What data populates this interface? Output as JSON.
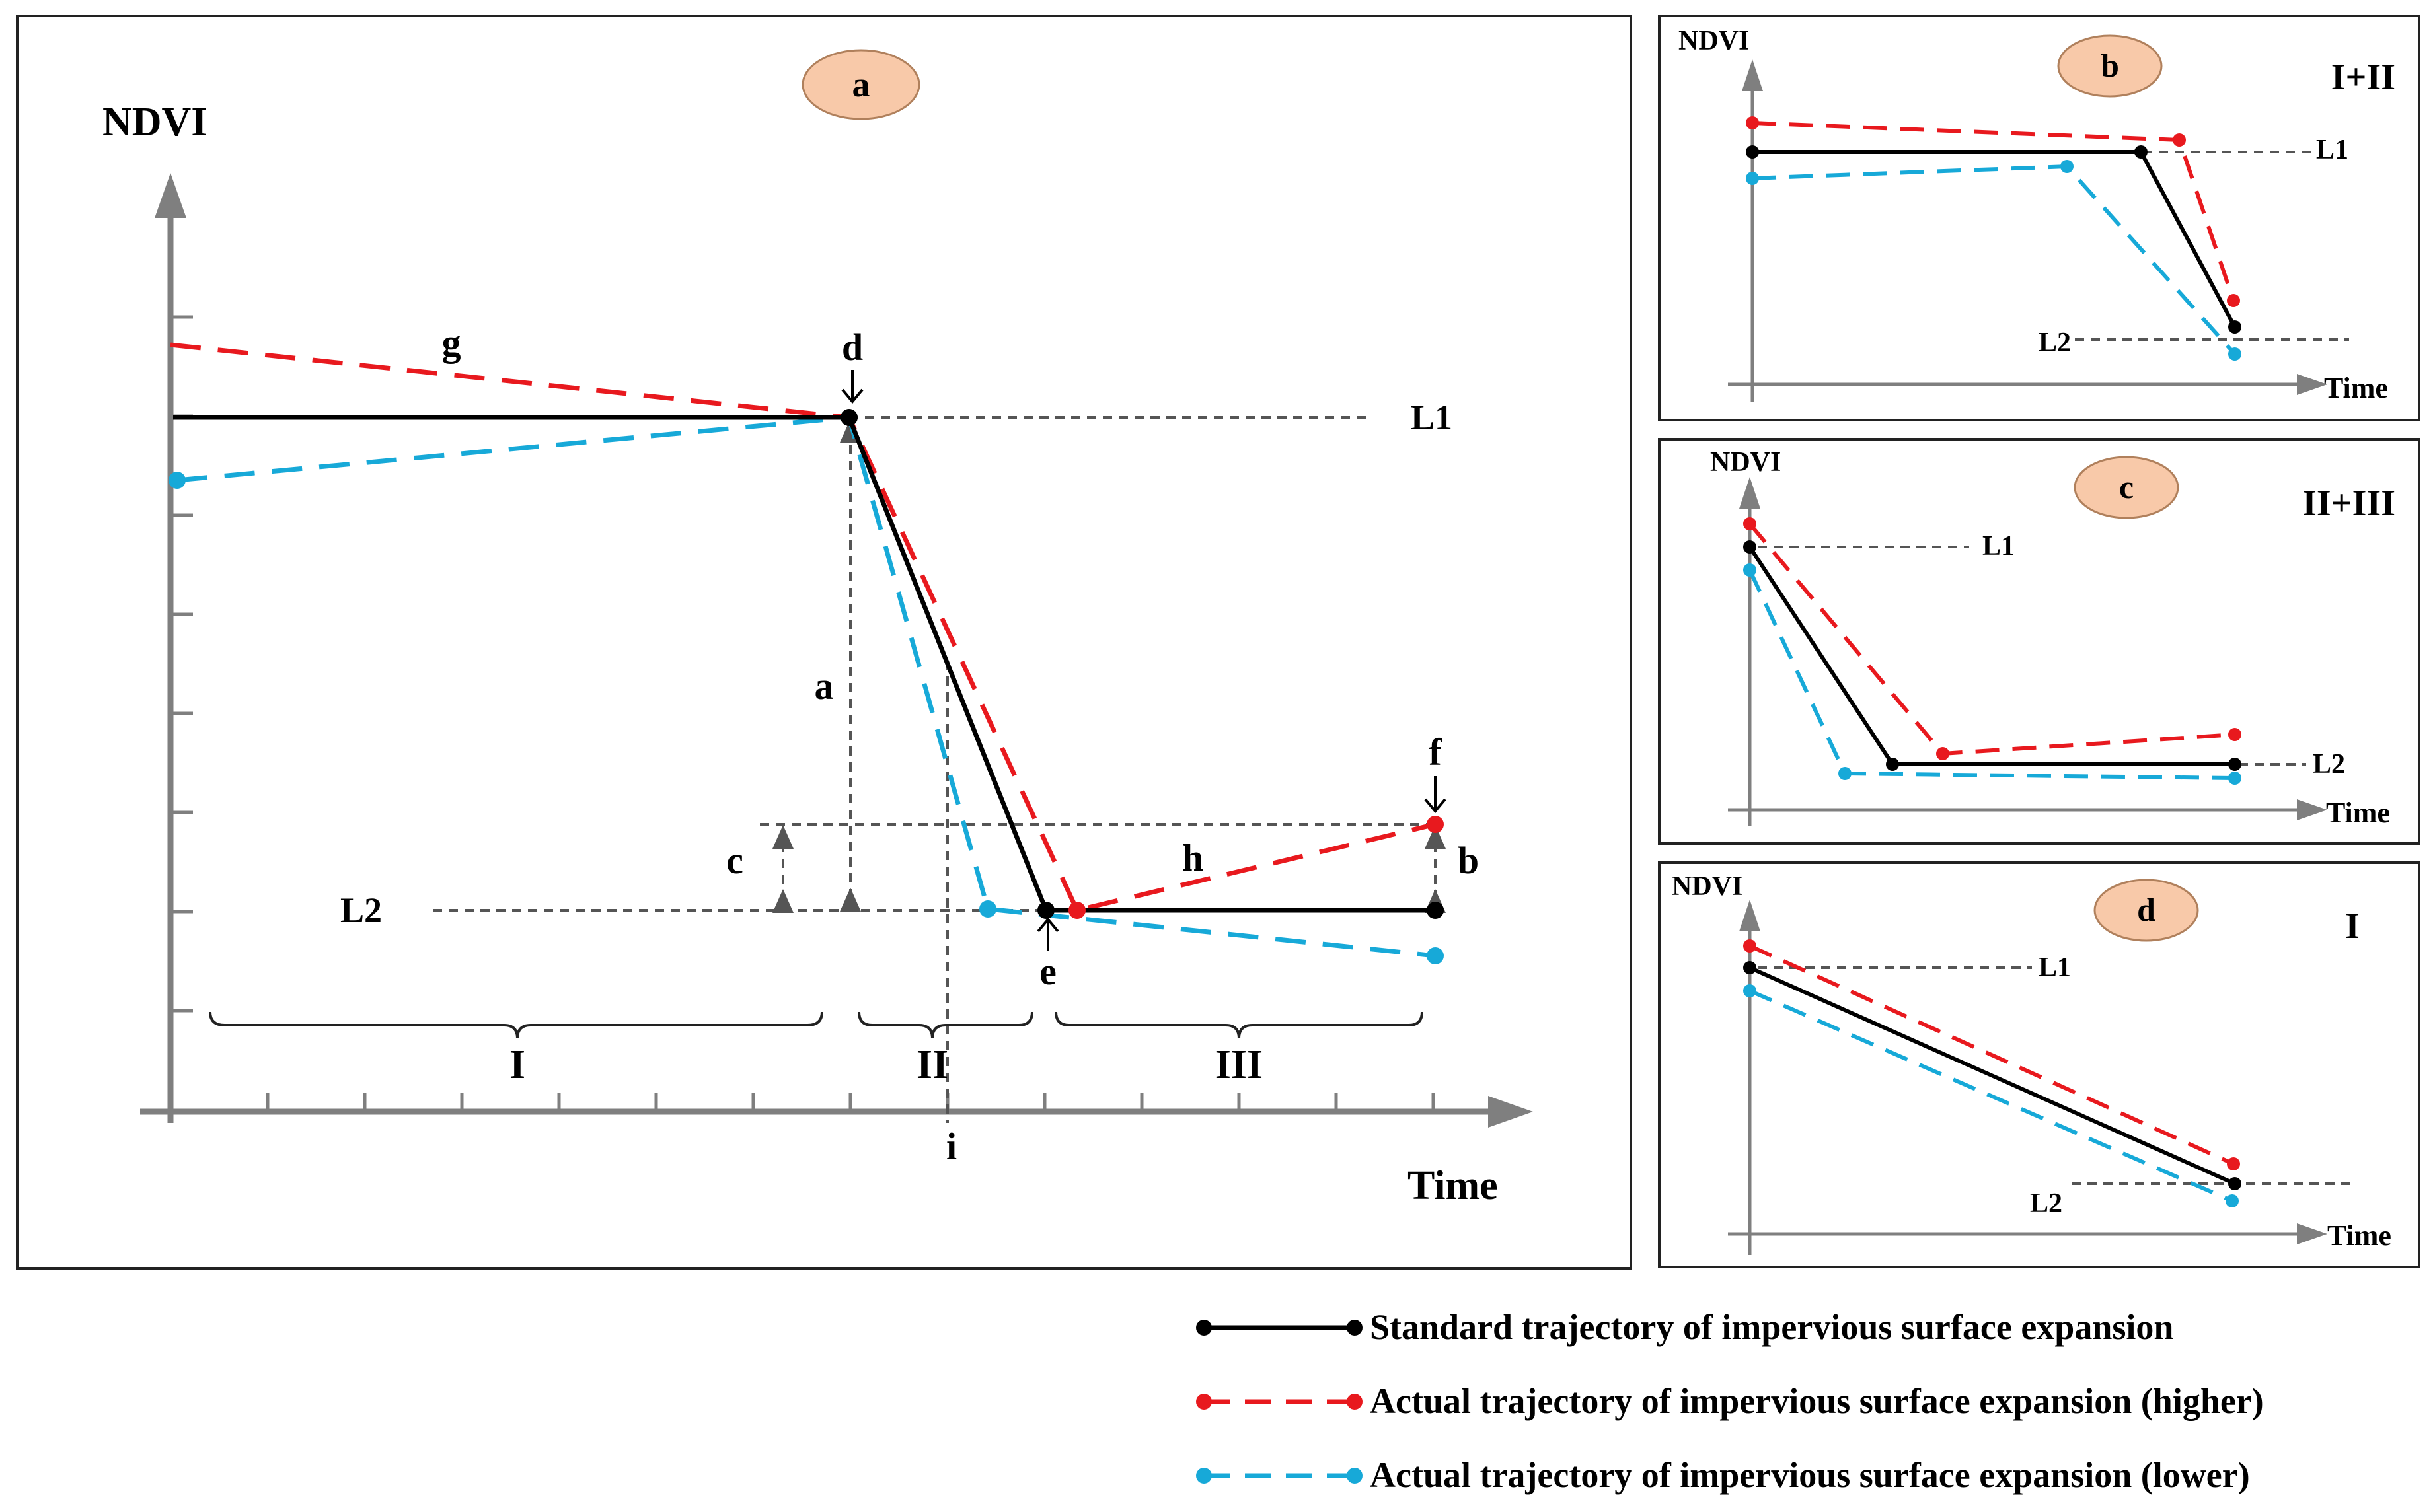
{
  "colors": {
    "standard": "#000000",
    "higher": "#e8191e",
    "lower": "#17a9d8",
    "badge": "#f8c9a9",
    "axis": "#7f7f7f"
  },
  "panels": {
    "a": {
      "badge": "a",
      "y_label": "NDVI",
      "x_label": "Time",
      "levels": {
        "l1": "L1",
        "l2": "L2"
      },
      "markers": {
        "g": "g",
        "d": "d",
        "e": "e",
        "f": "f",
        "h": "h",
        "i": "i"
      },
      "gaps": {
        "a": "a",
        "b": "b",
        "c": "c"
      },
      "stages": [
        "I",
        "II",
        "III"
      ]
    },
    "b": {
      "badge": "b",
      "case": "I+II",
      "y_label": "NDVI",
      "x_label": "Time",
      "l1": "L1",
      "l2": "L2"
    },
    "c": {
      "badge": "c",
      "case": "II+III",
      "y_label": "NDVI",
      "x_label": "Time",
      "l1": "L1",
      "l2": "L2"
    },
    "d": {
      "badge": "d",
      "case": "I",
      "y_label": "NDVI",
      "x_label": "Time",
      "l1": "L1",
      "l2": "L2"
    }
  },
  "legend": [
    {
      "label": "Standard trajectory of impervious surface expansion",
      "color": "#000000",
      "dashed": false
    },
    {
      "label": "Actual trajectory of impervious surface expansion (higher)",
      "color": "#e8191e",
      "dashed": true
    },
    {
      "label": "Actual trajectory of impervious surface expansion (lower)",
      "color": "#17a9d8",
      "dashed": true
    }
  ]
}
